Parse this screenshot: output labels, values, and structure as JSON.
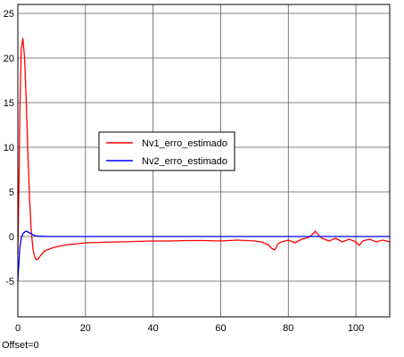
{
  "offset_label": "Offset=0",
  "chart_data": {
    "type": "line",
    "title": "",
    "xlabel": "",
    "ylabel": "",
    "xlim": [
      0,
      110
    ],
    "ylim": [
      -9,
      26
    ],
    "x_ticks": [
      0,
      20,
      40,
      60,
      80,
      100
    ],
    "y_ticks": [
      -5,
      0,
      5,
      10,
      15,
      20,
      25
    ],
    "grid": true,
    "legend_position": "center-left",
    "series": [
      {
        "name": "Nv1_erro_estimado",
        "color": "#ff0000",
        "x": [
          0,
          0.3,
          0.6,
          1.0,
          1.5,
          2.0,
          2.5,
          3.0,
          3.5,
          4.0,
          4.5,
          5.0,
          5.5,
          6.0,
          7.0,
          8.0,
          10,
          12,
          15,
          18,
          20,
          25,
          30,
          35,
          40,
          45,
          50,
          55,
          60,
          65,
          70,
          72,
          74,
          75,
          76,
          77,
          78,
          80,
          82,
          84,
          86,
          87,
          88,
          89,
          90,
          92,
          94,
          96,
          98,
          100,
          101,
          102,
          104,
          106,
          108,
          110
        ],
        "y": [
          -2,
          5,
          14,
          21,
          22.2,
          20,
          15,
          9,
          4,
          0.5,
          -1.5,
          -2.3,
          -2.6,
          -2.5,
          -2.0,
          -1.6,
          -1.3,
          -1.1,
          -0.9,
          -0.8,
          -0.7,
          -0.65,
          -0.6,
          -0.55,
          -0.5,
          -0.5,
          -0.45,
          -0.45,
          -0.5,
          -0.4,
          -0.5,
          -0.6,
          -0.9,
          -1.3,
          -1.5,
          -0.8,
          -0.6,
          -0.4,
          -0.7,
          -0.3,
          -0.1,
          0.2,
          0.6,
          0.1,
          -0.2,
          -0.5,
          -0.2,
          -0.6,
          -0.3,
          -0.6,
          -1.0,
          -0.5,
          -0.3,
          -0.6,
          -0.4,
          -0.6
        ]
      },
      {
        "name": "Nv2_erro_estimado",
        "color": "#0000ff",
        "x": [
          0,
          0.3,
          0.6,
          1.0,
          1.5,
          2.0,
          2.5,
          3.0,
          3.5,
          4.0,
          4.5,
          5.0,
          6.0,
          8.0,
          10,
          20,
          40,
          60,
          80,
          100,
          110
        ],
        "y": [
          -5,
          -3,
          -1.2,
          -0.2,
          0.3,
          0.5,
          0.6,
          0.5,
          0.4,
          0.3,
          0.2,
          0.1,
          0.05,
          0.02,
          0.0,
          0.0,
          0.0,
          0.0,
          0.0,
          0.0,
          0.0
        ]
      }
    ]
  }
}
